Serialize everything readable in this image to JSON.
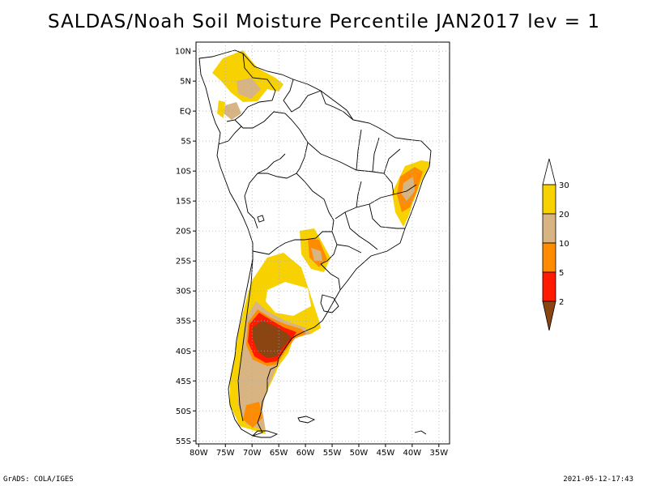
{
  "title": "SALDAS/Noah Soil Moisture Percentile JAN2017 lev = 1",
  "footer": {
    "left": "GrADS: COLA/IGES",
    "right": "2021-05-12-17:43"
  },
  "map": {
    "lat_labels": [
      "10N",
      "5N",
      "EQ",
      "5S",
      "10S",
      "15S",
      "20S",
      "25S",
      "30S",
      "35S",
      "40S",
      "45S",
      "50S",
      "55S"
    ],
    "lon_labels": [
      "80W",
      "75W",
      "70W",
      "65W",
      "60W",
      "55W",
      "50W",
      "45W",
      "40W",
      "35W"
    ],
    "lon_range": [
      -80.5,
      -33
    ],
    "lat_range": [
      -55.5,
      11.5
    ],
    "grid": true
  },
  "legend": {
    "breaks": [
      "30",
      "20",
      "10",
      "5",
      "2"
    ],
    "colors": {
      "above_30": "#ffffff",
      "20_30": "#f7d200",
      "10_20": "#d8b483",
      "5_10": "#ff8c00",
      "2_5": "#ff1a00",
      "below_2": "#8b4513"
    }
  },
  "colors": {
    "coast": "#000000",
    "grid": "#aaaaaa"
  }
}
